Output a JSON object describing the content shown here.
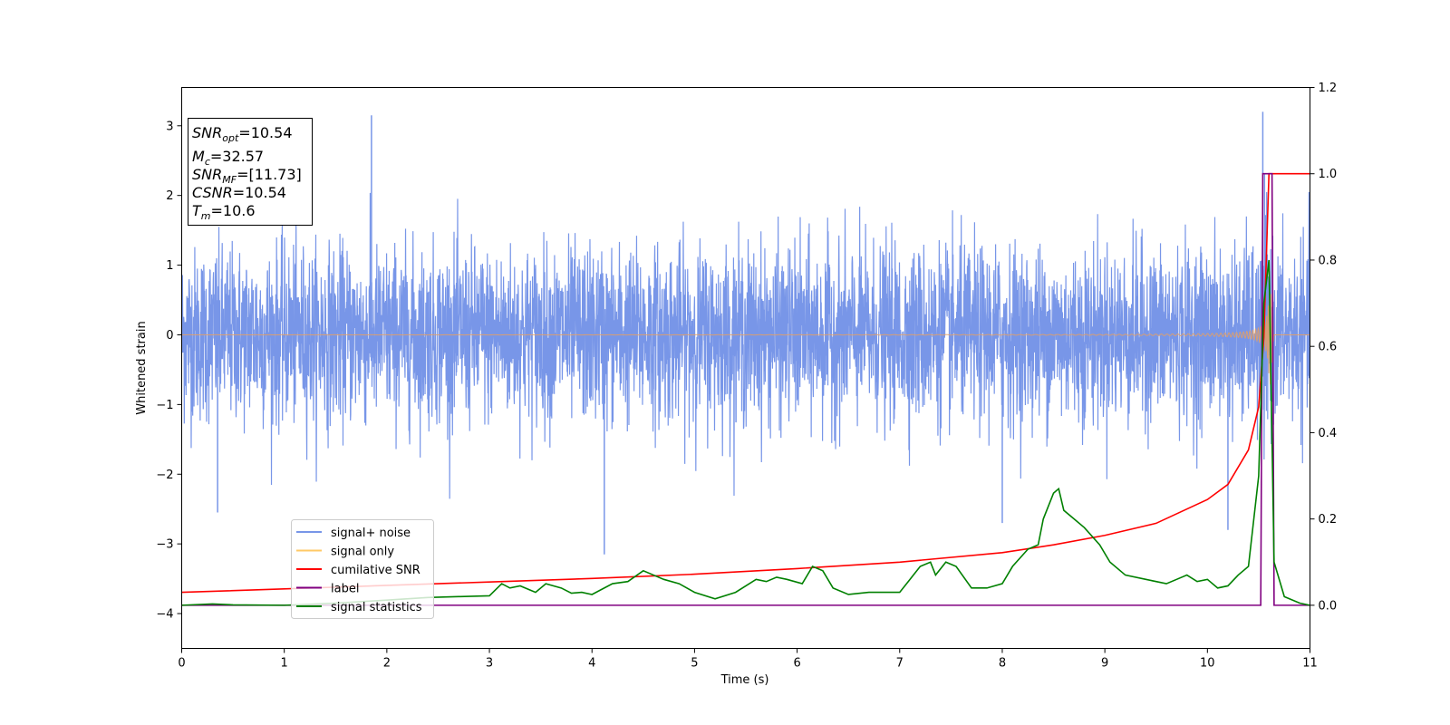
{
  "chart_data": {
    "type": "line",
    "xlabel": "Time (s)",
    "ylabel": "Whitened strain",
    "xlim": [
      0,
      11
    ],
    "ylim_left": [
      -4.5,
      3.55
    ],
    "ylim_right": [
      -0.1,
      1.2
    ],
    "xticks": [
      "0",
      "1",
      "2",
      "3",
      "4",
      "5",
      "6",
      "7",
      "8",
      "9",
      "10",
      "11"
    ],
    "yticks_left": [
      "3",
      "2",
      "1",
      "0",
      "−1",
      "−2",
      "−3",
      "−4"
    ],
    "yticks_right": [
      "1.2",
      "1.0",
      "0.8",
      "0.6",
      "0.4",
      "0.2",
      "0.0"
    ],
    "info_box": {
      "lines": [
        {
          "name": "SNR",
          "sub": "opt",
          "value": "=10.54"
        },
        {
          "name": "M",
          "sub": "c",
          "value": "=32.57"
        },
        {
          "name": "SNR",
          "sub": "MF",
          "value": "=[11.73]"
        },
        {
          "name": "CSNR",
          "sub": "",
          "value": "=10.54"
        },
        {
          "name": "T",
          "sub": "m",
          "value": "=10.6"
        }
      ]
    },
    "legend": {
      "placement": "lower-left",
      "entries": [
        {
          "label": "signal+ noise",
          "color": "#7896e8"
        },
        {
          "label": "signal only",
          "color": "#ffc966"
        },
        {
          "label": "cumilative SNR",
          "color": "#ff0000"
        },
        {
          "label": "label",
          "color": "#800080"
        },
        {
          "label": "signal statistics",
          "color": "#008000"
        }
      ]
    },
    "series": [
      {
        "name": "signal+ noise",
        "axis": "left",
        "color": "#7896e8",
        "description_note": "",
        "amplitude_envelope": [
          [
            0,
            1.6
          ],
          [
            11,
            1.6
          ]
        ],
        "peaks": [
          [
            1.85,
            3.15
          ],
          [
            10.54,
            3.2
          ],
          [
            0.35,
            -2.55
          ],
          [
            4.12,
            -3.15
          ],
          [
            8.0,
            -2.7
          ],
          [
            10.2,
            -2.8
          ]
        ]
      },
      {
        "name": "signal only",
        "axis": "left",
        "color": "#ffc966",
        "chirp": {
          "t_merge": 10.6,
          "peak_amplitude": 1.0
        }
      },
      {
        "name": "cumilative SNR",
        "axis": "right",
        "color": "#ff0000",
        "x": [
          0,
          1,
          2,
          3,
          4,
          5,
          6,
          7,
          8,
          8.5,
          9,
          9.5,
          10,
          10.2,
          10.4,
          10.5,
          10.55,
          10.6,
          11
        ],
        "y": [
          0.03,
          0.038,
          0.046,
          0.054,
          0.062,
          0.072,
          0.085,
          0.1,
          0.122,
          0.14,
          0.162,
          0.19,
          0.245,
          0.28,
          0.36,
          0.46,
          0.62,
          1.0,
          1.0
        ]
      },
      {
        "name": "label",
        "axis": "right",
        "color": "#800080",
        "x": [
          0,
          10.52,
          10.54,
          10.63,
          10.65,
          11
        ],
        "y": [
          0,
          0,
          1.0,
          1.0,
          0,
          0
        ]
      },
      {
        "name": "signal statistics",
        "axis": "right",
        "color": "#008000",
        "x": [
          0,
          0.3,
          0.5,
          1,
          1.5,
          2,
          2.4,
          2.7,
          3.0,
          3.12,
          3.2,
          3.3,
          3.4,
          3.45,
          3.55,
          3.7,
          3.8,
          3.9,
          4.0,
          4.2,
          4.35,
          4.5,
          4.6,
          4.7,
          4.85,
          5.0,
          5.2,
          5.4,
          5.6,
          5.7,
          5.8,
          5.9,
          6.05,
          6.15,
          6.25,
          6.35,
          6.5,
          6.7,
          7.0,
          7.1,
          7.2,
          7.3,
          7.35,
          7.45,
          7.55,
          7.7,
          7.85,
          8.0,
          8.1,
          8.25,
          8.35,
          8.4,
          8.5,
          8.55,
          8.6,
          8.7,
          8.8,
          8.95,
          9.05,
          9.2,
          9.4,
          9.6,
          9.7,
          9.8,
          9.9,
          10.0,
          10.1,
          10.2,
          10.3,
          10.4,
          10.5,
          10.55,
          10.6,
          10.65,
          10.75,
          10.9,
          11
        ],
        "y": [
          0,
          0.003,
          0.001,
          0,
          0.005,
          0.012,
          0.018,
          0.02,
          0.022,
          0.05,
          0.04,
          0.045,
          0.035,
          0.03,
          0.05,
          0.04,
          0.028,
          0.03,
          0.025,
          0.05,
          0.055,
          0.08,
          0.07,
          0.06,
          0.05,
          0.03,
          0.015,
          0.03,
          0.06,
          0.055,
          0.065,
          0.06,
          0.05,
          0.09,
          0.08,
          0.04,
          0.025,
          0.03,
          0.03,
          0.06,
          0.09,
          0.1,
          0.07,
          0.1,
          0.09,
          0.04,
          0.04,
          0.05,
          0.09,
          0.13,
          0.14,
          0.2,
          0.26,
          0.27,
          0.22,
          0.2,
          0.18,
          0.14,
          0.1,
          0.07,
          0.06,
          0.05,
          0.06,
          0.07,
          0.055,
          0.06,
          0.04,
          0.045,
          0.07,
          0.09,
          0.3,
          0.7,
          0.8,
          0.1,
          0.02,
          0.005,
          0
        ]
      }
    ]
  }
}
